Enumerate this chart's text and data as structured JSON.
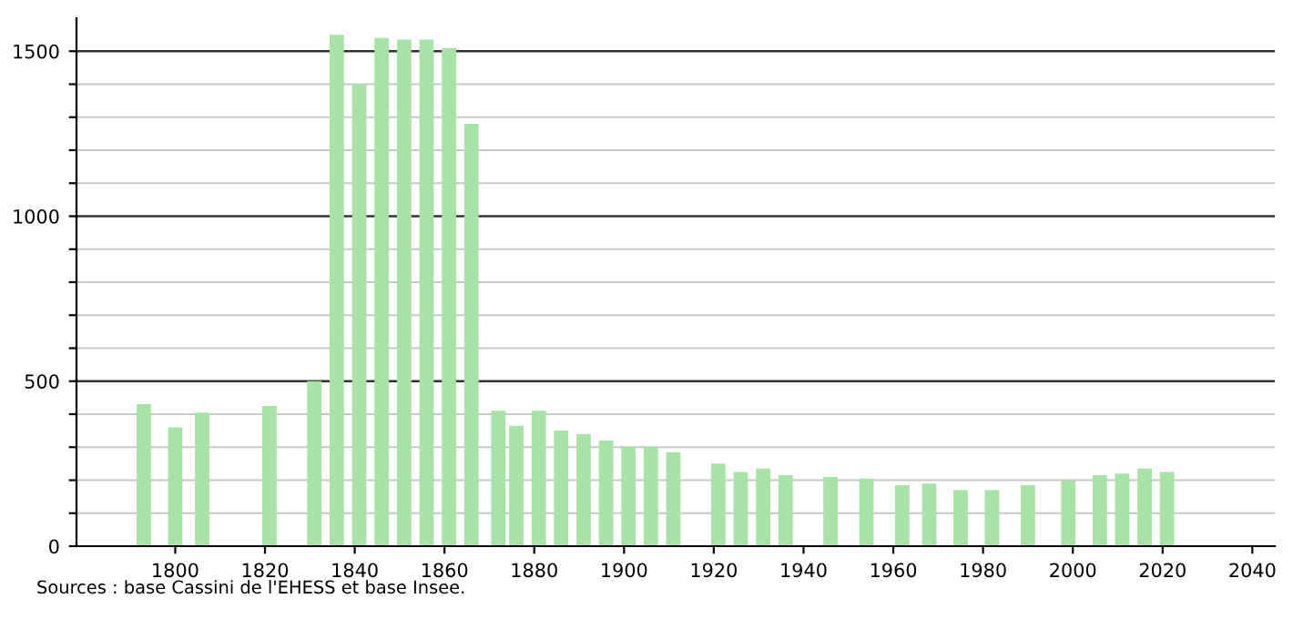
{
  "chart_data": {
    "type": "bar",
    "x": [
      1793,
      1800,
      1806,
      1821,
      1831,
      1836,
      1841,
      1846,
      1851,
      1856,
      1861,
      1866,
      1872,
      1876,
      1881,
      1886,
      1891,
      1896,
      1901,
      1906,
      1911,
      1921,
      1926,
      1931,
      1936,
      1946,
      1954,
      1962,
      1968,
      1975,
      1982,
      1990,
      1999,
      2006,
      2011,
      2016,
      2021
    ],
    "values": [
      430,
      360,
      405,
      425,
      500,
      1550,
      1400,
      1540,
      1535,
      1535,
      1510,
      1280,
      410,
      365,
      410,
      350,
      340,
      320,
      300,
      300,
      285,
      250,
      225,
      235,
      215,
      210,
      205,
      185,
      190,
      170,
      170,
      185,
      200,
      215,
      220,
      235,
      225
    ],
    "color": "#a8e2a8",
    "xlim": [
      1778,
      2045
    ],
    "xticks": [
      1800,
      1820,
      1840,
      1860,
      1880,
      1900,
      1920,
      1940,
      1960,
      1980,
      2000,
      2020,
      2040
    ],
    "ylim": [
      0,
      1600
    ],
    "yticks": [
      0,
      {
        "value": 100,
        "label": null
      },
      {
        "value": 200,
        "label": null
      },
      {
        "value": 300,
        "label": null
      },
      {
        "value": 400,
        "label": null
      },
      500,
      {
        "value": 600,
        "label": null
      },
      {
        "value": 700,
        "label": null
      },
      {
        "value": 800,
        "label": null
      },
      {
        "value": 900,
        "label": null
      },
      1000,
      {
        "value": 1100,
        "label": null
      },
      {
        "value": 1200,
        "label": null
      },
      {
        "value": 1300,
        "label": null
      },
      {
        "value": 1400,
        "label": null
      },
      1500
    ],
    "grid": "y",
    "annotations": [
      "Sources : base Cassini de l'EHESS et base Insee."
    ]
  }
}
